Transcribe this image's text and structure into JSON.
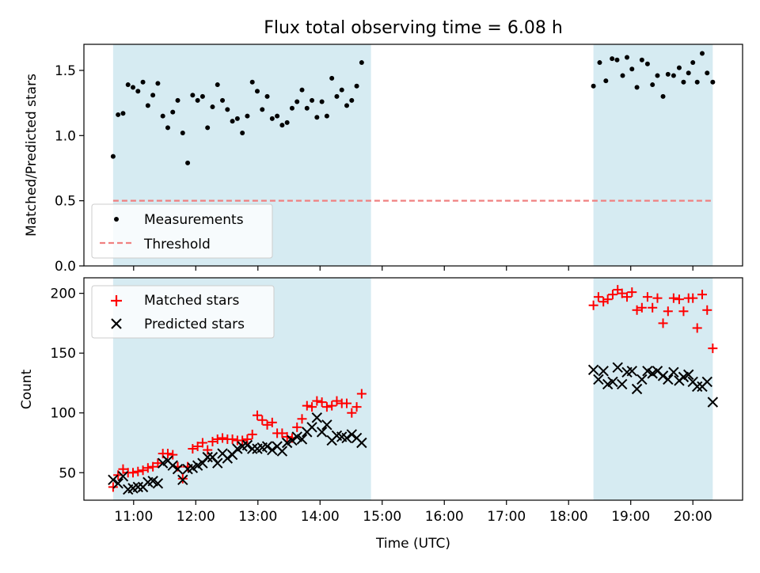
{
  "title": "Flux total observing time = 6.08 h",
  "chart_data": [
    {
      "type": "scatter",
      "ylabel": "Matched/Predicted stars",
      "ylim": [
        0,
        1.7
      ],
      "xlim_hours": [
        10.2,
        20.8
      ],
      "ytick_labels": [
        "0.0",
        "0.5",
        "1.0",
        "1.5"
      ],
      "ytick_values": [
        0,
        0.5,
        1.0,
        1.5
      ],
      "shaded_regions_hours": [
        [
          10.67,
          14.82
        ],
        [
          18.4,
          20.32
        ]
      ],
      "shade_color": "#add8e6",
      "threshold": 0.5,
      "threshold_color": "#f08080",
      "legend": {
        "placement": "lower-left",
        "entries": [
          "Measurements",
          "Threshold"
        ]
      },
      "series": [
        {
          "name": "Measurements",
          "marker": "dot",
          "color": "#000000",
          "points": [
            [
              10.67,
              0.84
            ],
            [
              10.75,
              1.16
            ],
            [
              10.83,
              1.17
            ],
            [
              10.91,
              1.39
            ],
            [
              10.99,
              1.37
            ],
            [
              11.07,
              1.34
            ],
            [
              11.15,
              1.41
            ],
            [
              11.23,
              1.23
            ],
            [
              11.31,
              1.31
            ],
            [
              11.39,
              1.4
            ],
            [
              11.47,
              1.15
            ],
            [
              11.55,
              1.06
            ],
            [
              11.63,
              1.18
            ],
            [
              11.71,
              1.27
            ],
            [
              11.79,
              1.02
            ],
            [
              11.87,
              0.79
            ],
            [
              11.95,
              1.31
            ],
            [
              12.03,
              1.27
            ],
            [
              12.11,
              1.3
            ],
            [
              12.19,
              1.06
            ],
            [
              12.27,
              1.22
            ],
            [
              12.35,
              1.39
            ],
            [
              12.43,
              1.27
            ],
            [
              12.51,
              1.2
            ],
            [
              12.59,
              1.11
            ],
            [
              12.67,
              1.13
            ],
            [
              12.75,
              1.02
            ],
            [
              12.83,
              1.15
            ],
            [
              12.91,
              1.41
            ],
            [
              12.99,
              1.34
            ],
            [
              13.07,
              1.2
            ],
            [
              13.15,
              1.3
            ],
            [
              13.23,
              1.13
            ],
            [
              13.31,
              1.15
            ],
            [
              13.39,
              1.08
            ],
            [
              13.47,
              1.1
            ],
            [
              13.55,
              1.21
            ],
            [
              13.63,
              1.26
            ],
            [
              13.71,
              1.35
            ],
            [
              13.79,
              1.21
            ],
            [
              13.87,
              1.27
            ],
            [
              13.95,
              1.14
            ],
            [
              14.03,
              1.26
            ],
            [
              14.11,
              1.15
            ],
            [
              14.19,
              1.44
            ],
            [
              14.27,
              1.3
            ],
            [
              14.35,
              1.35
            ],
            [
              14.43,
              1.23
            ],
            [
              14.51,
              1.27
            ],
            [
              14.59,
              1.38
            ],
            [
              14.67,
              1.56
            ],
            [
              18.4,
              1.38
            ],
            [
              18.5,
              1.56
            ],
            [
              18.6,
              1.42
            ],
            [
              18.7,
              1.59
            ],
            [
              18.78,
              1.58
            ],
            [
              18.87,
              1.46
            ],
            [
              18.94,
              1.6
            ],
            [
              19.02,
              1.51
            ],
            [
              19.1,
              1.37
            ],
            [
              19.18,
              1.58
            ],
            [
              19.27,
              1.55
            ],
            [
              19.35,
              1.39
            ],
            [
              19.43,
              1.46
            ],
            [
              19.52,
              1.3
            ],
            [
              19.6,
              1.47
            ],
            [
              19.69,
              1.46
            ],
            [
              19.78,
              1.52
            ],
            [
              19.85,
              1.41
            ],
            [
              19.93,
              1.48
            ],
            [
              20.0,
              1.56
            ],
            [
              20.07,
              1.41
            ],
            [
              20.15,
              1.63
            ],
            [
              20.23,
              1.48
            ],
            [
              20.32,
              1.41
            ]
          ]
        }
      ]
    },
    {
      "type": "scatter",
      "xlabel": "Time (UTC)",
      "ylabel": "Count",
      "ylim": [
        27,
        213
      ],
      "xlim_hours": [
        10.2,
        20.8
      ],
      "ytick_labels": [
        "50",
        "100",
        "150",
        "200"
      ],
      "ytick_values": [
        50,
        100,
        150,
        200
      ],
      "xtick_labels": [
        "11:00",
        "12:00",
        "13:00",
        "14:00",
        "15:00",
        "16:00",
        "17:00",
        "18:00",
        "19:00",
        "20:00"
      ],
      "xtick_hours": [
        11,
        12,
        13,
        14,
        15,
        16,
        17,
        18,
        19,
        20
      ],
      "shaded_regions_hours": [
        [
          10.67,
          14.82
        ],
        [
          18.4,
          20.32
        ]
      ],
      "shade_color": "#add8e6",
      "legend": {
        "placement": "upper-left",
        "entries": [
          "Matched stars",
          "Predicted stars"
        ]
      },
      "series": [
        {
          "name": "Matched stars",
          "marker": "plus",
          "color": "#ff0000",
          "points": [
            [
              10.67,
              38
            ],
            [
              10.75,
              48
            ],
            [
              10.83,
              53
            ],
            [
              10.91,
              50
            ],
            [
              10.99,
              50
            ],
            [
              11.07,
              51
            ],
            [
              11.15,
              52
            ],
            [
              11.23,
              54
            ],
            [
              11.31,
              55
            ],
            [
              11.39,
              58
            ],
            [
              11.47,
              66
            ],
            [
              11.55,
              66
            ],
            [
              11.63,
              65
            ],
            [
              11.71,
              55
            ],
            [
              11.79,
              45
            ],
            [
              11.87,
              55
            ],
            [
              11.95,
              70
            ],
            [
              12.03,
              72
            ],
            [
              12.11,
              75
            ],
            [
              12.19,
              69
            ],
            [
              12.27,
              76
            ],
            [
              12.35,
              78
            ],
            [
              12.43,
              79
            ],
            [
              12.51,
              78
            ],
            [
              12.59,
              78
            ],
            [
              12.67,
              77
            ],
            [
              12.75,
              77
            ],
            [
              12.83,
              78
            ],
            [
              12.91,
              82
            ],
            [
              12.99,
              98
            ],
            [
              13.07,
              94
            ],
            [
              13.15,
              90
            ],
            [
              13.23,
              92
            ],
            [
              13.31,
              83
            ],
            [
              13.39,
              83
            ],
            [
              13.47,
              80
            ],
            [
              13.55,
              79
            ],
            [
              13.63,
              88
            ],
            [
              13.71,
              95
            ],
            [
              13.79,
              106
            ],
            [
              13.87,
              105
            ],
            [
              13.95,
              110
            ],
            [
              14.03,
              109
            ],
            [
              14.11,
              105
            ],
            [
              14.19,
              106
            ],
            [
              14.27,
              110
            ],
            [
              14.35,
              108
            ],
            [
              14.43,
              108
            ],
            [
              14.51,
              100
            ],
            [
              14.59,
              105
            ],
            [
              14.67,
              116
            ],
            [
              18.4,
              190
            ],
            [
              18.48,
              197
            ],
            [
              18.56,
              193
            ],
            [
              18.63,
              195
            ],
            [
              18.71,
              199
            ],
            [
              18.79,
              203
            ],
            [
              18.86,
              200
            ],
            [
              18.94,
              197
            ],
            [
              19.02,
              201
            ],
            [
              19.1,
              186
            ],
            [
              19.18,
              188
            ],
            [
              19.27,
              197
            ],
            [
              19.35,
              188
            ],
            [
              19.43,
              196
            ],
            [
              19.52,
              175
            ],
            [
              19.6,
              185
            ],
            [
              19.69,
              196
            ],
            [
              19.78,
              195
            ],
            [
              19.85,
              185
            ],
            [
              19.93,
              196
            ],
            [
              20.0,
              196
            ],
            [
              20.07,
              171
            ],
            [
              20.15,
              199
            ],
            [
              20.23,
              186
            ],
            [
              20.32,
              154
            ]
          ]
        },
        {
          "name": "Predicted stars",
          "marker": "x",
          "color": "#000000",
          "points": [
            [
              10.67,
              44
            ],
            [
              10.75,
              41
            ],
            [
              10.83,
              47
            ],
            [
              10.91,
              36
            ],
            [
              10.99,
              37
            ],
            [
              11.07,
              38
            ],
            [
              11.15,
              38
            ],
            [
              11.23,
              42
            ],
            [
              11.31,
              43
            ],
            [
              11.39,
              41
            ],
            [
              11.47,
              58
            ],
            [
              11.55,
              60
            ],
            [
              11.63,
              56
            ],
            [
              11.71,
              53
            ],
            [
              11.79,
              44
            ],
            [
              11.87,
              53
            ],
            [
              11.95,
              54
            ],
            [
              12.03,
              56
            ],
            [
              12.11,
              58
            ],
            [
              12.19,
              63
            ],
            [
              12.27,
              63
            ],
            [
              12.35,
              58
            ],
            [
              12.43,
              66
            ],
            [
              12.51,
              62
            ],
            [
              12.59,
              65
            ],
            [
              12.67,
              70
            ],
            [
              12.75,
              72
            ],
            [
              12.83,
              73
            ],
            [
              12.91,
              70
            ],
            [
              12.99,
              70
            ],
            [
              13.07,
              71
            ],
            [
              13.15,
              72
            ],
            [
              13.23,
              69
            ],
            [
              13.31,
              72
            ],
            [
              13.39,
              68
            ],
            [
              13.47,
              75
            ],
            [
              13.55,
              77
            ],
            [
              13.63,
              80
            ],
            [
              13.71,
              78
            ],
            [
              13.79,
              84
            ],
            [
              13.87,
              88
            ],
            [
              13.95,
              96
            ],
            [
              14.03,
              84
            ],
            [
              14.11,
              90
            ],
            [
              14.19,
              77
            ],
            [
              14.27,
              81
            ],
            [
              14.35,
              80
            ],
            [
              14.43,
              79
            ],
            [
              14.51,
              82
            ],
            [
              14.59,
              79
            ],
            [
              14.67,
              75
            ],
            [
              18.4,
              136
            ],
            [
              18.48,
              128
            ],
            [
              18.56,
              135
            ],
            [
              18.63,
              124
            ],
            [
              18.71,
              126
            ],
            [
              18.79,
              138
            ],
            [
              18.86,
              124
            ],
            [
              18.94,
              134
            ],
            [
              19.02,
              135
            ],
            [
              19.1,
              120
            ],
            [
              19.18,
              128
            ],
            [
              19.27,
              135
            ],
            [
              19.35,
              133
            ],
            [
              19.43,
              135
            ],
            [
              19.52,
              131
            ],
            [
              19.6,
              128
            ],
            [
              19.69,
              134
            ],
            [
              19.78,
              127
            ],
            [
              19.85,
              130
            ],
            [
              19.93,
              132
            ],
            [
              20.0,
              126
            ],
            [
              20.07,
              122
            ],
            [
              20.15,
              122
            ],
            [
              20.23,
              126
            ],
            [
              20.32,
              109
            ]
          ]
        }
      ]
    }
  ]
}
